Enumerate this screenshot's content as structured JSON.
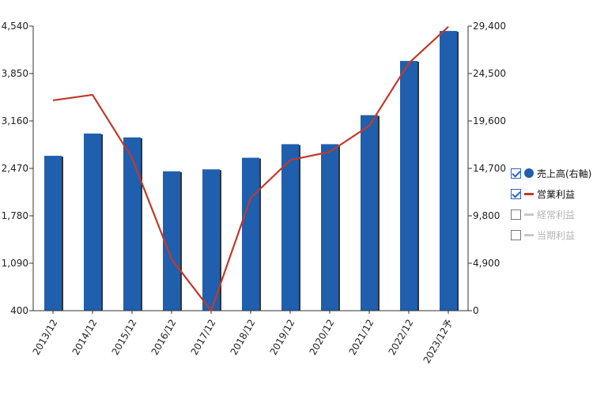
{
  "chart_data": {
    "type": "bar",
    "categories": [
      "2013/12",
      "2014/12",
      "2015/12",
      "2016/12",
      "2017/12",
      "2018/12",
      "2019/12",
      "2020/12",
      "2021/12",
      "2022/12",
      "2023/12予"
    ],
    "series": [
      {
        "name": "売上高(右軸)",
        "kind": "bar",
        "axis": "right",
        "color": "#1f5fae",
        "values": [
          16000,
          18300,
          17900,
          14400,
          14600,
          15800,
          17200,
          17200,
          20200,
          25800,
          28900
        ]
      },
      {
        "name": "営業利益",
        "kind": "line",
        "axis": "left",
        "color": "#c0392b",
        "values": [
          3460,
          3540,
          2620,
          1150,
          400,
          2040,
          2590,
          2710,
          3090,
          4000,
          4530
        ]
      }
    ],
    "left_axis": {
      "ticks": [
        400,
        1090,
        1780,
        2470,
        3160,
        3850,
        4540
      ],
      "tick_labels": [
        "400",
        "1,090",
        "1,780",
        "2,470",
        "3,160",
        "3,850",
        "4,540"
      ],
      "min": 400,
      "max": 4540
    },
    "right_axis": {
      "ticks": [
        0,
        4900,
        9800,
        14700,
        19600,
        24500,
        29400
      ],
      "tick_labels": [
        "0",
        "4,900",
        "9,800",
        "14,700",
        "19,600",
        "24,500",
        "29,400"
      ],
      "min": 0,
      "max": 29400
    },
    "grid": false
  },
  "legend": [
    {
      "label": "売上高(右軸)",
      "checked": true,
      "symbol": "dot",
      "color": "#1f5fae"
    },
    {
      "label": "営業利益",
      "checked": true,
      "symbol": "line",
      "color": "#c0392b"
    },
    {
      "label": "経常利益",
      "checked": false,
      "symbol": "line",
      "color": "#c8c8c8"
    },
    {
      "label": "当期利益",
      "checked": false,
      "symbol": "line",
      "color": "#c8c8c8"
    }
  ]
}
